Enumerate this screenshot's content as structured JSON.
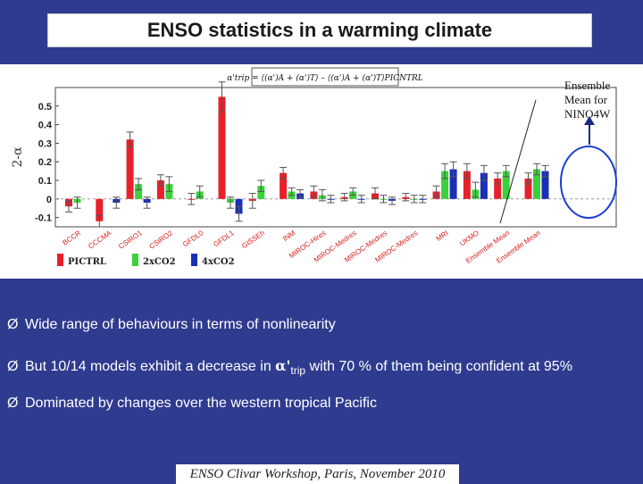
{
  "slide_title": "ENSO statistics in a warming climate",
  "ensemble_note": [
    "Ensemble",
    "Mean for",
    "NINO4W"
  ],
  "chart_data": {
    "type": "bar",
    "ylabel": "2-α",
    "ylim": [
      -0.15,
      0.6
    ],
    "yticks": [
      -0.1,
      0,
      0.1,
      0.2,
      0.3,
      0.4,
      0.5
    ],
    "ytick_labels": [
      "-0.1",
      "0",
      "0.1",
      "0.2",
      "0.3",
      "0.4",
      "0.5"
    ],
    "formula": "α'trip = ⟨(α')A + (α')T⟩ – ⟨(α')A + (α')T⟩PICNTRL",
    "categories": [
      "BCCR",
      "CCCMA",
      "CSIRO1",
      "CSIRO2",
      "GFDL0",
      "GFDL1",
      "GISSEh",
      "INM",
      "MIROC-Hires",
      "MIROC-Medres",
      "MIROC-Medres",
      "MIROC-Medres",
      "MRI",
      "UKMO",
      "Ensemble Mean",
      "Ensemble Mean"
    ],
    "category_labels": [
      "BCCR",
      "CCCMA",
      "CSIRO1",
      "CSIRO2",
      "GFDL0",
      "GFDL1",
      "GISSEh",
      "INM",
      "MIROC-Hires",
      "MIROC-Medres",
      "MIROC-Medres",
      "MIROC-Medres",
      "MRI",
      "UKMO",
      "Ensemble Mean",
      "Ensemble Mean"
    ],
    "legend_placement": "bottom-left",
    "series": [
      {
        "name": "PICTRL",
        "color": "#e8202a",
        "values": [
          -0.04,
          -0.12,
          0.32,
          0.1,
          0.0,
          0.55,
          -0.01,
          0.14,
          0.04,
          0.01,
          0.03,
          0.01,
          0.04,
          0.15,
          0.11,
          0.11
        ],
        "errors": [
          0.03,
          0.03,
          0.04,
          0.03,
          0.03,
          0.08,
          0.04,
          0.03,
          0.03,
          0.02,
          0.03,
          0.02,
          0.03,
          0.04,
          0.03,
          0.03
        ]
      },
      {
        "name": "2xCO2",
        "color": "#3bd13b",
        "values": [
          -0.02,
          null,
          0.08,
          0.08,
          0.04,
          -0.02,
          0.07,
          0.04,
          0.02,
          0.04,
          0.0,
          0.0,
          0.15,
          0.05,
          0.15,
          0.16
        ],
        "errors": [
          0.03,
          null,
          0.03,
          0.04,
          0.03,
          0.03,
          0.03,
          0.02,
          0.03,
          0.02,
          0.02,
          0.02,
          0.04,
          0.04,
          0.03,
          0.03
        ]
      },
      {
        "name": "4xCO2",
        "color": "#1a2fb8",
        "values": [
          null,
          -0.02,
          -0.02,
          null,
          null,
          -0.08,
          null,
          0.03,
          0.0,
          0.0,
          -0.01,
          0.0,
          0.16,
          0.14,
          null,
          0.15
        ],
        "errors": [
          null,
          0.03,
          0.03,
          null,
          null,
          0.04,
          null,
          0.02,
          0.02,
          0.02,
          0.02,
          0.02,
          0.04,
          0.04,
          null,
          0.03
        ]
      }
    ]
  },
  "bullets": [
    {
      "marker": "Ø",
      "text": "Wide range of behaviours in terms of nonlinearity"
    },
    {
      "marker": "Ø",
      "pre": "But 10/14 models exhibit a decrease in ",
      "alpha": "α'",
      "sub": "trip",
      "post": " with 70 % of them being confident at 95%"
    },
    {
      "marker": "Ø",
      "text": "Dominated by changes over the western tropical Pacific"
    }
  ],
  "footer": "ENSO Clivar Workshop, Paris, November 2010",
  "colors": {
    "background": "#2f3b8f",
    "circle": "#1a3fd0",
    "arrow": "#1a2a80"
  }
}
